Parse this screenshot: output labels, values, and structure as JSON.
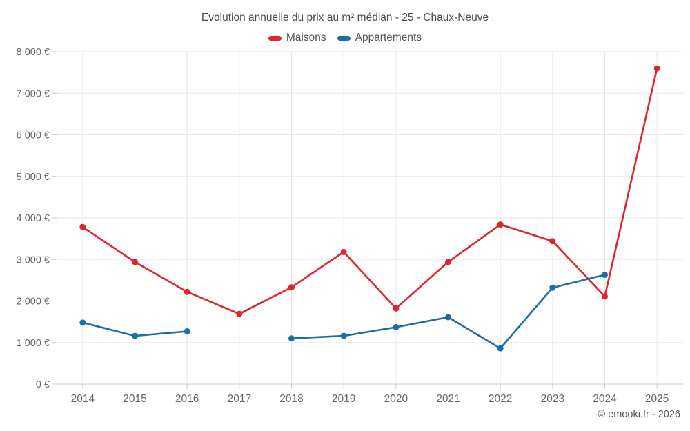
{
  "chart_data": {
    "type": "line",
    "title": "Evolution annuelle du prix au m² médian - 25 - Chaux-Neuve",
    "categories": [
      "2014",
      "2015",
      "2016",
      "2017",
      "2018",
      "2019",
      "2020",
      "2021",
      "2022",
      "2023",
      "2024",
      "2025"
    ],
    "series": [
      {
        "name": "Maisons",
        "color": "#e0242b",
        "values": [
          3780,
          2940,
          2220,
          1690,
          2330,
          3180,
          1820,
          2940,
          3840,
          3440,
          2110,
          7600
        ]
      },
      {
        "name": "Appartements",
        "color": "#1c6ea9",
        "values": [
          1480,
          1160,
          1270,
          null,
          1100,
          1160,
          1370,
          1610,
          860,
          2320,
          2630,
          null
        ]
      }
    ],
    "xlabel": "",
    "ylabel": "",
    "ylim": [
      0,
      8000
    ],
    "yticks": [
      {
        "value": 0,
        "label": "0 €"
      },
      {
        "value": 1000,
        "label": "1 000 €"
      },
      {
        "value": 2000,
        "label": "2 000 €"
      },
      {
        "value": 3000,
        "label": "3 000 €"
      },
      {
        "value": 4000,
        "label": "4 000 €"
      },
      {
        "value": 5000,
        "label": "5 000 €"
      },
      {
        "value": 6000,
        "label": "6 000 €"
      },
      {
        "value": 7000,
        "label": "7 000 €"
      },
      {
        "value": 8000,
        "label": "8 000 €"
      }
    ],
    "grid": true,
    "legend_position": "top",
    "marker": "circle"
  },
  "footer": {
    "credit": "© emooki.fr - 2026"
  },
  "colors": {
    "gridline": "#e8e8e8",
    "axis_line": "#cccccc",
    "tick": "#cccccc",
    "axis_label": "#666666",
    "title_text": "#4a4a4a"
  }
}
